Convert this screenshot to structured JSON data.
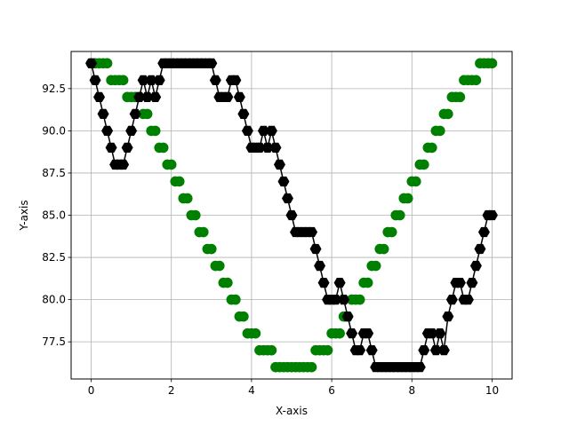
{
  "chart_data": {
    "type": "scatter",
    "title": "",
    "xlabel": "X-axis",
    "ylabel": "Y-axis",
    "xlim": [
      -0.5,
      10.5
    ],
    "ylim": [
      75.3,
      94.7
    ],
    "xticks": [
      0,
      2,
      4,
      6,
      8,
      10
    ],
    "yticks": [
      77.5,
      80.0,
      82.5,
      85.0,
      87.5,
      90.0,
      92.5
    ],
    "xtick_labels": [
      "0",
      "2",
      "4",
      "6",
      "8",
      "10"
    ],
    "ytick_labels": [
      "77.5",
      "80.0",
      "82.5",
      "85.0",
      "87.5",
      "90.0",
      "92.5"
    ],
    "grid": true,
    "legend": "none",
    "series": [
      {
        "color": "#008000",
        "marker": "circle",
        "line": false,
        "x": [
          0.0,
          0.1,
          0.2,
          0.3,
          0.4,
          0.5,
          0.6,
          0.7,
          0.8,
          0.9,
          1.0,
          1.1,
          1.2,
          1.3,
          1.4,
          1.5,
          1.6,
          1.7,
          1.8,
          1.9,
          2.0,
          2.1,
          2.2,
          2.3,
          2.4,
          2.5,
          2.6,
          2.7,
          2.8,
          2.9,
          3.0,
          3.1,
          3.2,
          3.3,
          3.4,
          3.5,
          3.6,
          3.7,
          3.8,
          3.9,
          4.0,
          4.1,
          4.2,
          4.3,
          4.4,
          4.5,
          4.6,
          4.7,
          4.8,
          4.9,
          5.0,
          5.1,
          5.2,
          5.3,
          5.4,
          5.5,
          5.6,
          5.7,
          5.8,
          5.9,
          6.0,
          6.1,
          6.2,
          6.3,
          6.4,
          6.5,
          6.6,
          6.7,
          6.8,
          6.9,
          7.0,
          7.1,
          7.2,
          7.3,
          7.4,
          7.5,
          7.6,
          7.7,
          7.8,
          7.9,
          8.0,
          8.1,
          8.2,
          8.3,
          8.4,
          8.5,
          8.6,
          8.7,
          8.8,
          8.9,
          9.0,
          9.1,
          9.2,
          9.3,
          9.4,
          9.5,
          9.6,
          9.7,
          9.8,
          9.9,
          10.0
        ],
        "y": [
          94,
          94,
          94,
          94,
          94,
          93,
          93,
          93,
          93,
          92,
          92,
          92,
          92,
          91,
          91,
          90,
          90,
          89,
          89,
          88,
          88,
          87,
          87,
          86,
          86,
          85,
          85,
          84,
          84,
          83,
          83,
          82,
          82,
          81,
          81,
          80,
          80,
          79,
          79,
          78,
          78,
          78,
          77,
          77,
          77,
          77,
          76,
          76,
          76,
          76,
          76,
          76,
          76,
          76,
          76,
          76,
          77,
          77,
          77,
          77,
          78,
          78,
          78,
          79,
          79,
          80,
          80,
          80,
          81,
          81,
          82,
          82,
          83,
          83,
          84,
          84,
          85,
          85,
          86,
          86,
          87,
          87,
          88,
          88,
          89,
          89,
          90,
          90,
          91,
          91,
          92,
          92,
          92,
          93,
          93,
          93,
          93,
          94,
          94,
          94,
          94
        ]
      },
      {
        "color": "#000000",
        "marker": "hexagon",
        "line": true,
        "x": [
          0.0,
          0.1,
          0.2,
          0.3,
          0.4,
          0.5,
          0.6,
          0.7,
          0.8,
          0.9,
          1.0,
          1.1,
          1.2,
          1.3,
          1.4,
          1.5,
          1.6,
          1.7,
          1.8,
          1.9,
          2.0,
          2.1,
          2.2,
          2.3,
          2.4,
          2.5,
          2.6,
          2.7,
          2.8,
          2.9,
          3.0,
          3.1,
          3.2,
          3.3,
          3.4,
          3.5,
          3.6,
          3.7,
          3.8,
          3.9,
          4.0,
          4.1,
          4.2,
          4.3,
          4.4,
          4.5,
          4.6,
          4.7,
          4.8,
          4.9,
          5.0,
          5.1,
          5.2,
          5.3,
          5.4,
          5.5,
          5.6,
          5.7,
          5.8,
          5.9,
          6.0,
          6.1,
          6.2,
          6.3,
          6.4,
          6.5,
          6.6,
          6.7,
          6.8,
          6.9,
          7.0,
          7.1,
          7.2,
          7.3,
          7.4,
          7.5,
          7.6,
          7.7,
          7.8,
          7.9,
          8.0,
          8.1,
          8.2,
          8.3,
          8.4,
          8.5,
          8.6,
          8.7,
          8.8,
          8.9,
          9.0,
          9.1,
          9.2,
          9.3,
          9.4,
          9.5,
          9.6,
          9.7,
          9.8,
          9.9,
          10.0
        ],
        "y": [
          94,
          93,
          92,
          91,
          90,
          89,
          88,
          88,
          88,
          89,
          90,
          91,
          92,
          93,
          92,
          93,
          92,
          93,
          94,
          94,
          94,
          94,
          94,
          94,
          94,
          94,
          94,
          94,
          94,
          94,
          94,
          93,
          92,
          92,
          92,
          93,
          93,
          92,
          91,
          90,
          89,
          89,
          89,
          90,
          89,
          90,
          89,
          88,
          87,
          86,
          85,
          84,
          84,
          84,
          84,
          84,
          83,
          82,
          81,
          80,
          80,
          80,
          81,
          80,
          79,
          78,
          77,
          77,
          78,
          78,
          77,
          76,
          76,
          76,
          76,
          76,
          76,
          76,
          76,
          76,
          76,
          76,
          76,
          77,
          78,
          78,
          77,
          78,
          77,
          79,
          80,
          81,
          81,
          80,
          80,
          81,
          82,
          83,
          84,
          85,
          85
        ]
      }
    ]
  }
}
